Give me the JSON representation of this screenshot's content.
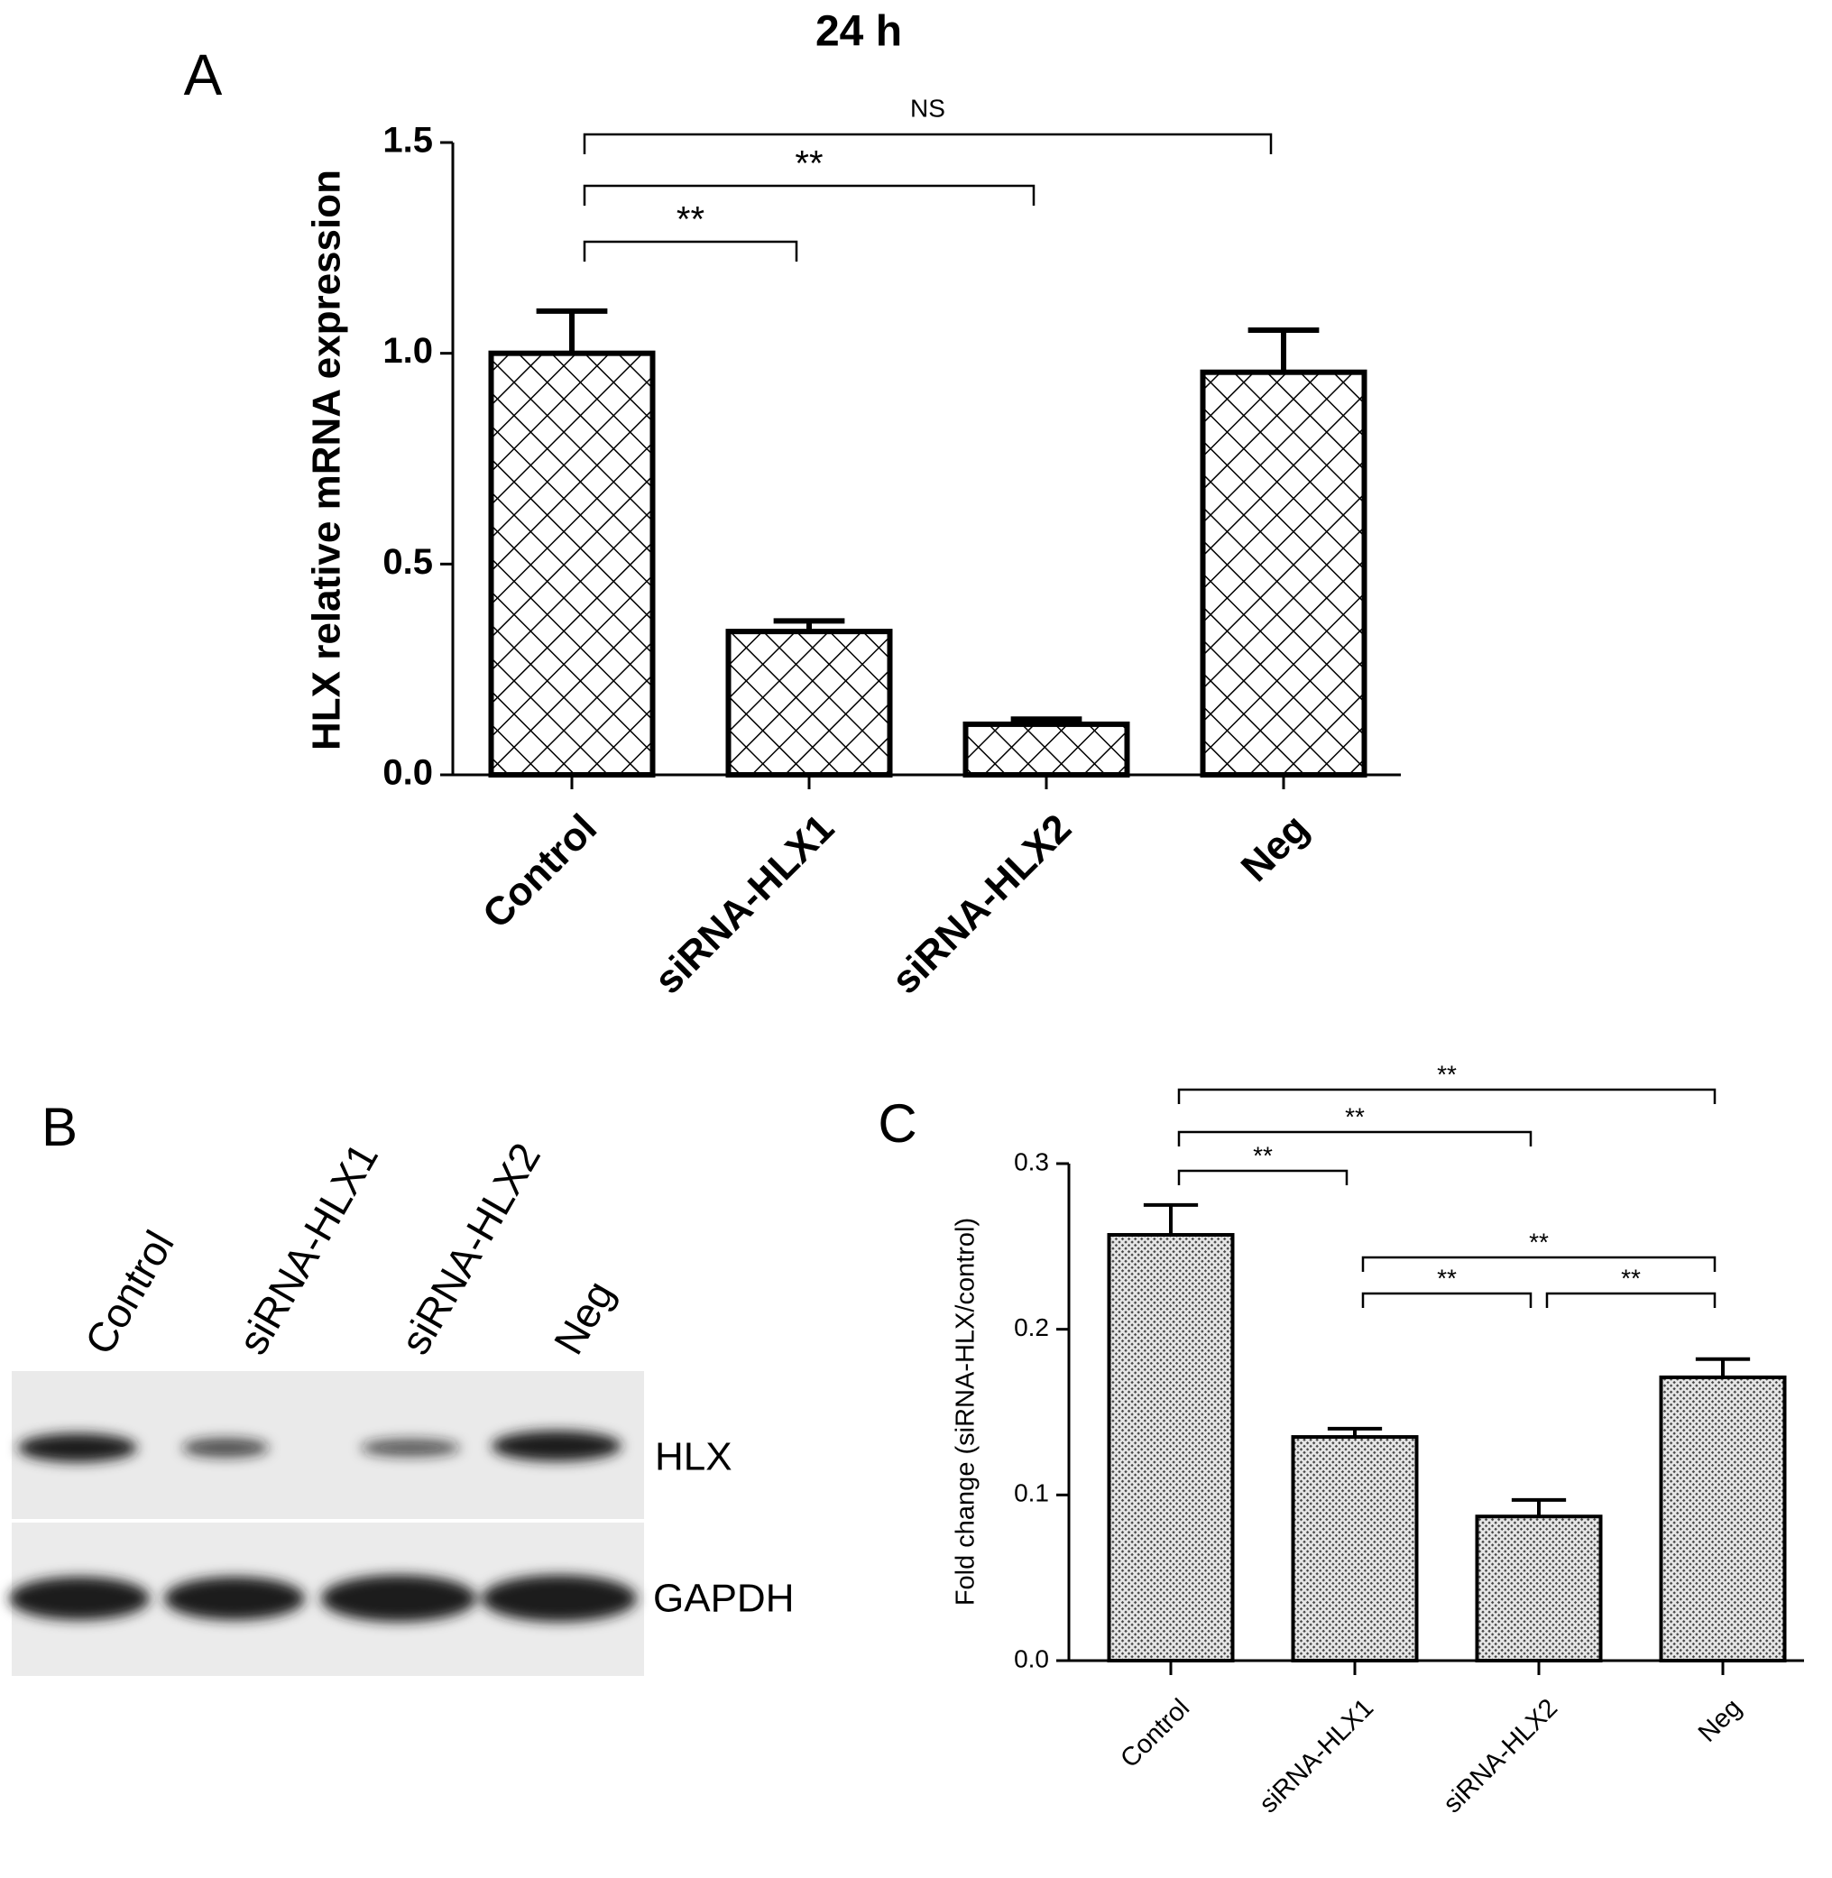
{
  "chart_data": [
    {
      "type": "bar",
      "panel": "A",
      "title": "24 h",
      "y_label": "HLX relative mRNA expression",
      "categories": [
        "Control",
        "siRNA-HLX1",
        "siRNA-HLX2",
        "Neg"
      ],
      "values": [
        1.0,
        0.34,
        0.12,
        0.955
      ],
      "errors": [
        0.1,
        0.025,
        0.012,
        0.1
      ],
      "ylim": [
        0,
        1.5
      ],
      "yticks": [
        {
          "value": 0,
          "label": "0.0"
        },
        {
          "value": 0.5,
          "label": "0.5"
        },
        {
          "value": 1,
          "label": "1.0"
        },
        {
          "value": 1.5,
          "label": "1.5"
        }
      ],
      "color": "#000000",
      "comparisons": [
        {
          "from": 0,
          "to": 1,
          "label": "**"
        },
        {
          "from": 0,
          "to": 2,
          "label": "**"
        },
        {
          "from": 0,
          "to": 3,
          "label": "NS"
        }
      ]
    },
    {
      "type": "bar",
      "panel": "C",
      "y_label": "Fold change (siRNA-HLX/control)",
      "categories": [
        "Control",
        "siRNA-HLX1",
        "siRNA-HLX2",
        "Neg"
      ],
      "values": [
        0.257,
        0.135,
        0.087,
        0.171
      ],
      "errors": [
        0.018,
        0.005,
        0.01,
        0.011
      ],
      "ylim": [
        0,
        0.3
      ],
      "yticks": [
        {
          "value": 0,
          "label": "0.0"
        },
        0.1,
        0.2,
        0.3
      ],
      "color": "#000000",
      "comparisons": [
        {
          "from": 0,
          "to": 1,
          "label": "**"
        },
        {
          "from": 0,
          "to": 2,
          "label": "**"
        },
        {
          "from": 0,
          "to": 3,
          "label": "**"
        },
        {
          "from": 1,
          "to": 3,
          "label": "**"
        },
        {
          "from": 1,
          "to": 2,
          "label": "**"
        },
        {
          "from": 2,
          "to": 3,
          "label": "**"
        }
      ]
    }
  ],
  "blot": {
    "panel": "B",
    "lanes": [
      "Control",
      "siRNA-HLX1",
      "siRNA-HLX2",
      "Neg"
    ],
    "bands": [
      "HLX",
      "GAPDH"
    ]
  }
}
